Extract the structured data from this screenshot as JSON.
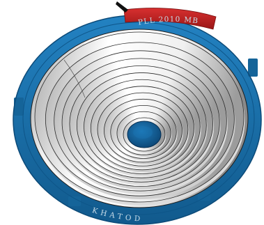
{
  "image": {
    "subject": "cad-render-circular-reflector-with-concentric-rings",
    "top_engraving": "PLL 2010 MB",
    "bottom_engraving": "KHATOD",
    "ring_count": 13,
    "colors": {
      "background": "#ffffff",
      "housing_blue": "#1a6ea7",
      "housing_blue_dark": "#0e4f7f",
      "hub_blue": "#10568a",
      "clip_red": "#c52626",
      "clip_red_dark": "#8f1414",
      "interior_light": "#fafafa",
      "interior_shade": "#8d8d8d",
      "ring_line": "#2a2a2a",
      "engraving": "#c9dde9"
    }
  }
}
